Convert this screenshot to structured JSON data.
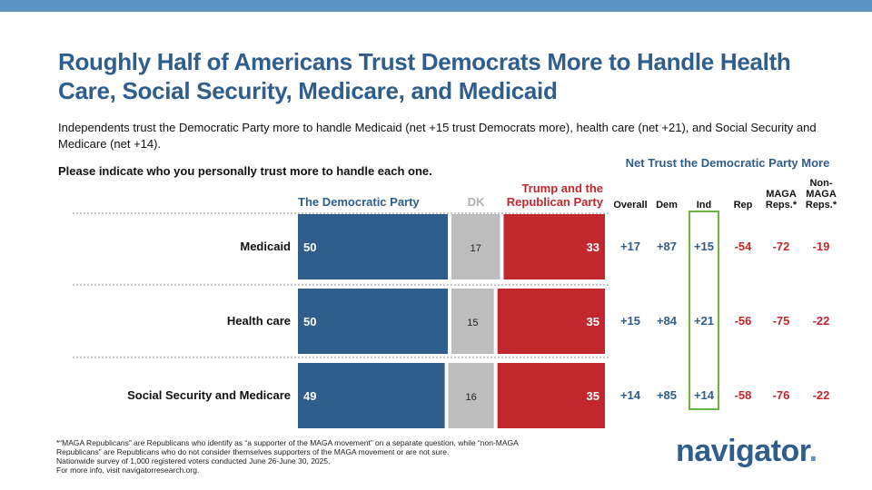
{
  "title": "Roughly Half of Americans Trust Democrats More to Handle Health Care, Social Security, Medicare, and Medicaid",
  "subtitle": "Independents trust the Democratic Party more to handle Medicaid (net +15 trust Democrats more), health care (net +21), and Social Security and Medicare (net +14).",
  "question": "Please indicate who you personally trust more to handle each one.",
  "net_header": "Net Trust the Democratic Party More",
  "net_columns": [
    "Overall",
    "Dem",
    "Ind",
    "Rep",
    "MAGA Reps.*",
    "Non-MAGA Reps.*"
  ],
  "legend": {
    "dem": "The Democratic Party",
    "dk": "DK",
    "rep": "Trump and the Republican Party"
  },
  "colors": {
    "dem": "#2f5d8c",
    "dk": "#bdbdbd",
    "rep": "#c1272d",
    "ind_box": "#6cb33f",
    "topbar": "#5b94c4"
  },
  "chart_data": {
    "type": "bar",
    "stacked": true,
    "orientation": "horizontal",
    "categories": [
      "Medicaid",
      "Health care",
      "Social Security and Medicare"
    ],
    "series": [
      {
        "name": "The Democratic Party",
        "values": [
          50,
          50,
          49
        ]
      },
      {
        "name": "DK",
        "values": [
          17,
          15,
          16
        ]
      },
      {
        "name": "Trump and the Republican Party",
        "values": [
          33,
          35,
          35
        ]
      }
    ],
    "net_trust": [
      {
        "Overall": "+17",
        "Dem": "+87",
        "Ind": "+15",
        "Rep": "-54",
        "MAGA": "-72",
        "NonMAGA": "-19"
      },
      {
        "Overall": "+15",
        "Dem": "+84",
        "Ind": "+21",
        "Rep": "-56",
        "MAGA": "-75",
        "NonMAGA": "-22"
      },
      {
        "Overall": "+14",
        "Dem": "+85",
        "Ind": "+14",
        "Rep": "-58",
        "MAGA": "-76",
        "NonMAGA": "-22"
      }
    ]
  },
  "footnote": [
    "*“MAGA Republicans” are Republicans who identify as “a supporter of the MAGA movement” on a separate question, while “non-MAGA Republicans” are Republicans who do not consider themselves supporters of the MAGA movement or are not sure.",
    "Nationwide survey of 1,000 registered voters conducted June 26-June 30, 2025.",
    "For more info, visit navigatorresearch.org."
  ],
  "logo": {
    "text": "navigator",
    "dot": "."
  }
}
